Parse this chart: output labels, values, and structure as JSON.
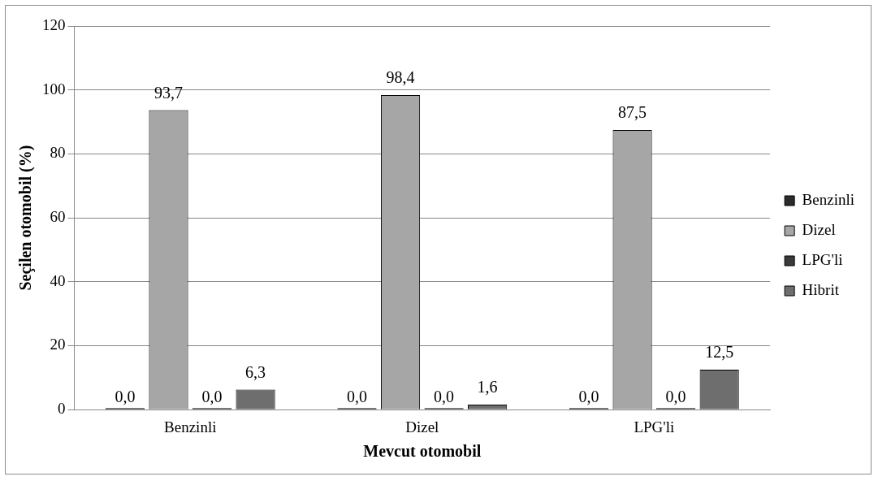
{
  "chart_data": {
    "type": "bar",
    "xlabel": "Mevcut otomobil",
    "ylabel": "Seçilen otomobil (%)",
    "categories": [
      "Benzinli",
      "Dizel",
      "LPG'li"
    ],
    "series": [
      {
        "name": "Benzinli",
        "color": "#2b2b2b",
        "values": [
          0.0,
          0.0,
          0.0
        ],
        "value_labels": [
          "0,0",
          "0,0",
          "0,0"
        ]
      },
      {
        "name": "Dizel",
        "color": "#a6a6a6",
        "values": [
          93.7,
          98.4,
          87.5
        ],
        "value_labels": [
          "93,7",
          "98,4",
          "87,5"
        ]
      },
      {
        "name": "LPG'li",
        "color": "#3a3a3a",
        "values": [
          0.0,
          0.0,
          0.0
        ],
        "value_labels": [
          "0,0",
          "0,0",
          "0,0"
        ]
      },
      {
        "name": "Hibrit",
        "color": "#6e6e6e",
        "values": [
          6.3,
          1.6,
          12.5
        ],
        "value_labels": [
          "6,3",
          "1,6",
          "12,5"
        ]
      }
    ],
    "ylim": [
      0,
      120
    ],
    "yticks": [
      0,
      20,
      40,
      60,
      80,
      100,
      120
    ],
    "grid": "y",
    "legend": "right"
  }
}
